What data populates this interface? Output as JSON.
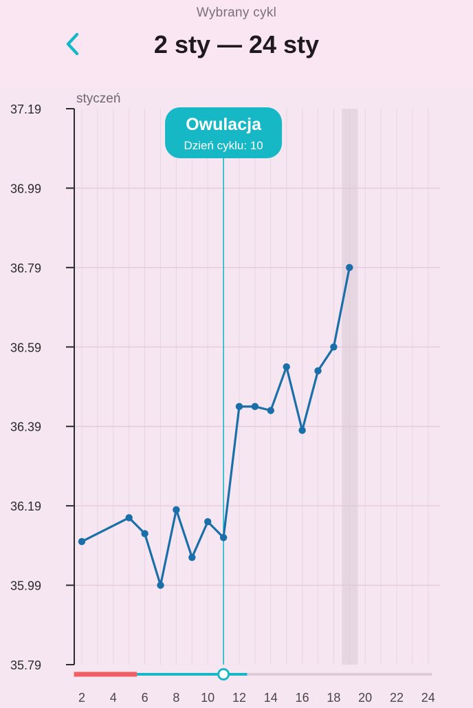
{
  "header": {
    "subtitle": "Wybrany cykl",
    "title": "2 sty — 24 sty",
    "back_icon": "chevron-left-icon"
  },
  "colors": {
    "accent": "#17b8c6",
    "line": "#1a6fa9",
    "period": "#ef5f63",
    "background": "#f6e6f2",
    "header_bg": "#fae5f2"
  },
  "ovulation": {
    "title": "Owulacja",
    "subtitle": "Dzień cyklu: 10",
    "day": 11
  },
  "today_day": 19,
  "period": {
    "from": 1.5,
    "to": 5.5
  },
  "timeline": {
    "from": 1.5,
    "to": 24.5,
    "active_to": 12.5
  },
  "chart_data": {
    "type": "line",
    "month_label": "styczeń",
    "xlabel": "",
    "ylabel": "",
    "ylim": [
      35.79,
      37.19
    ],
    "xlim": [
      1.5,
      24.5
    ],
    "y_ticks": [
      "37.19",
      "36.99",
      "36.79",
      "36.59",
      "36.39",
      "36.19",
      "35.99",
      "35.79"
    ],
    "x_ticks": [
      2,
      4,
      6,
      8,
      10,
      12,
      14,
      16,
      18,
      20,
      22,
      24
    ],
    "series": [
      {
        "x": [
          2,
          5,
          6,
          7,
          8,
          9,
          10,
          11,
          12,
          13,
          14,
          15,
          16,
          17,
          18,
          19
        ],
        "y": [
          36.1,
          36.16,
          36.12,
          35.99,
          36.18,
          36.06,
          36.15,
          36.11,
          36.44,
          36.44,
          36.43,
          36.54,
          36.38,
          36.53,
          36.59,
          36.79
        ]
      }
    ]
  }
}
